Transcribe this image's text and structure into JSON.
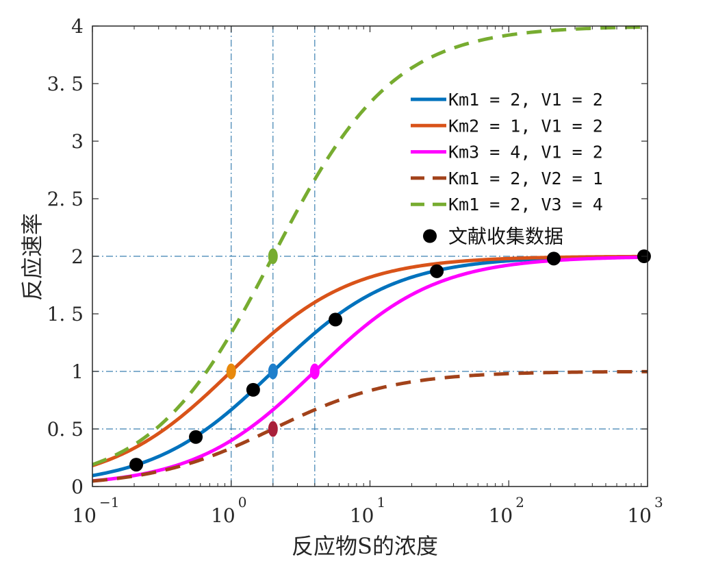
{
  "chart_data": {
    "type": "line",
    "title": "",
    "xlabel": "反应物S的浓度",
    "ylabel": "反应速率",
    "xscale": "log",
    "xlim": [
      0.1,
      1000
    ],
    "ylim": [
      0,
      4
    ],
    "x_ticks": [
      {
        "value": 0.1,
        "base": "10",
        "exp": "−1"
      },
      {
        "value": 1,
        "base": "10",
        "exp": "0"
      },
      {
        "value": 10,
        "base": "10",
        "exp": "1"
      },
      {
        "value": 100,
        "base": "10",
        "exp": "2"
      },
      {
        "value": 1000,
        "base": "10",
        "exp": "3"
      }
    ],
    "y_ticks": [
      {
        "value": 0,
        "label": "0"
      },
      {
        "value": 0.5,
        "label": "0. 5"
      },
      {
        "value": 1,
        "label": "1"
      },
      {
        "value": 1.5,
        "label": "1. 5"
      },
      {
        "value": 2,
        "label": "2"
      },
      {
        "value": 2.5,
        "label": "2. 5"
      },
      {
        "value": 3,
        "label": "3"
      },
      {
        "value": 3.5,
        "label": "3. 5"
      },
      {
        "value": 4,
        "label": "4"
      }
    ],
    "reference_lines": {
      "vertical_x": [
        1,
        2,
        4
      ],
      "horizontal_y": [
        0.5,
        1,
        2
      ],
      "color": "#3a7fb0",
      "style": "dash-dot"
    },
    "series": [
      {
        "name": "Km1 = 2, V1 = 2",
        "Km": 2,
        "V": 2,
        "color": "#0072BD",
        "style": "solid"
      },
      {
        "name": "Km2 = 1, V1 = 2",
        "Km": 1,
        "V": 2,
        "color": "#D95319",
        "style": "solid"
      },
      {
        "name": "Km3 = 4, V1 = 2",
        "Km": 4,
        "V": 2,
        "color": "#FF00FF",
        "style": "solid"
      },
      {
        "name": "Km1 = 2, V2 = 1",
        "Km": 2,
        "V": 1,
        "color": "#A2421A",
        "style": "dashed"
      },
      {
        "name": "Km1 = 2, V3 = 4",
        "Km": 2,
        "V": 4,
        "color": "#77AC30",
        "style": "dashed"
      }
    ],
    "half_max_markers": [
      {
        "x": 1,
        "y": 1,
        "color": "#E8890C"
      },
      {
        "x": 2,
        "y": 1,
        "color": "#1F7FCC"
      },
      {
        "x": 4,
        "y": 1,
        "color": "#FF00FF"
      },
      {
        "x": 2,
        "y": 0.5,
        "color": "#A8203A"
      },
      {
        "x": 2,
        "y": 2,
        "color": "#77AC30"
      }
    ],
    "scatter": {
      "name": "文献收集数据",
      "color": "#000000",
      "points": [
        {
          "x": 0.207,
          "y": 0.19
        },
        {
          "x": 0.556,
          "y": 0.43
        },
        {
          "x": 1.44,
          "y": 0.84
        },
        {
          "x": 5.64,
          "y": 1.45
        },
        {
          "x": 30.3,
          "y": 1.87
        },
        {
          "x": 211,
          "y": 1.98
        },
        {
          "x": 944,
          "y": 2.0
        }
      ]
    },
    "legend": {
      "location": "upper-right",
      "box": false
    },
    "grid": false
  }
}
